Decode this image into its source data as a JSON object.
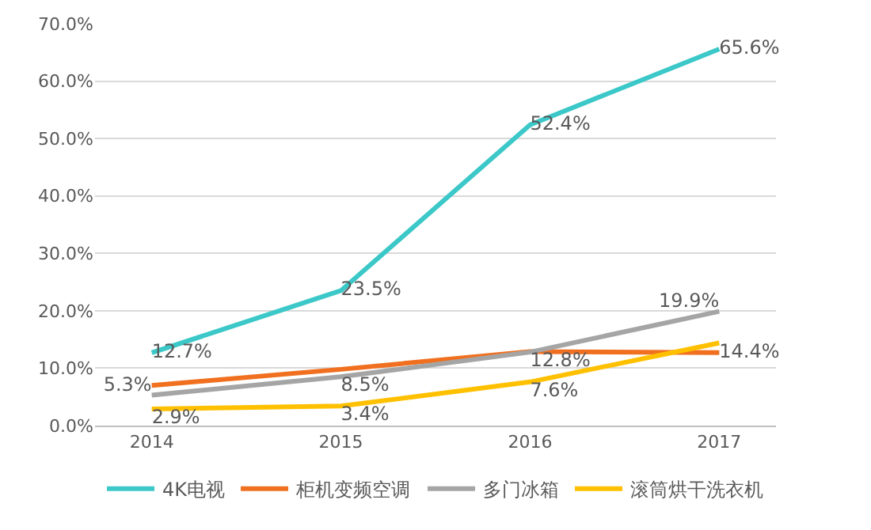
{
  "chart_data": {
    "type": "line",
    "categories": [
      "2014",
      "2015",
      "2016",
      "2017"
    ],
    "series": [
      {
        "name": "4K电视",
        "color": "#3cc8c8",
        "values": [
          12.7,
          23.5,
          52.4,
          65.6
        ],
        "value_labels": [
          "12.7%",
          "23.5%",
          "52.4%",
          "65.6%"
        ]
      },
      {
        "name": "柜机变频空调",
        "color": "#f07020",
        "values": [
          7.0,
          9.8,
          12.9,
          12.7
        ],
        "value_labels": [
          null,
          null,
          null,
          null
        ]
      },
      {
        "name": "多门冰箱",
        "color": "#a5a5a5",
        "values": [
          5.3,
          8.5,
          12.8,
          19.9
        ],
        "value_labels": [
          "5.3%",
          "8.5%",
          "12.8%",
          "19.9%"
        ]
      },
      {
        "name": "滚筒烘干洗衣机",
        "color": "#ffc000",
        "values": [
          2.9,
          3.4,
          7.6,
          14.4
        ],
        "value_labels": [
          "2.9%",
          "3.4%",
          "7.6%",
          "14.4%"
        ]
      }
    ],
    "ylim": [
      0,
      70
    ],
    "yticks": [
      {
        "value": 0,
        "label": "0.0%"
      },
      {
        "value": 10,
        "label": "10.0%"
      },
      {
        "value": 20,
        "label": "20.0%"
      },
      {
        "value": 30,
        "label": "30.0%"
      },
      {
        "value": 40,
        "label": "40.0%"
      },
      {
        "value": 50,
        "label": "50.0%"
      },
      {
        "value": 60,
        "label": "60.0%"
      },
      {
        "value": 70,
        "label": "70.0%"
      }
    ],
    "grid": "y",
    "legend": "bottom",
    "marker": "none",
    "line_style": "solid"
  }
}
